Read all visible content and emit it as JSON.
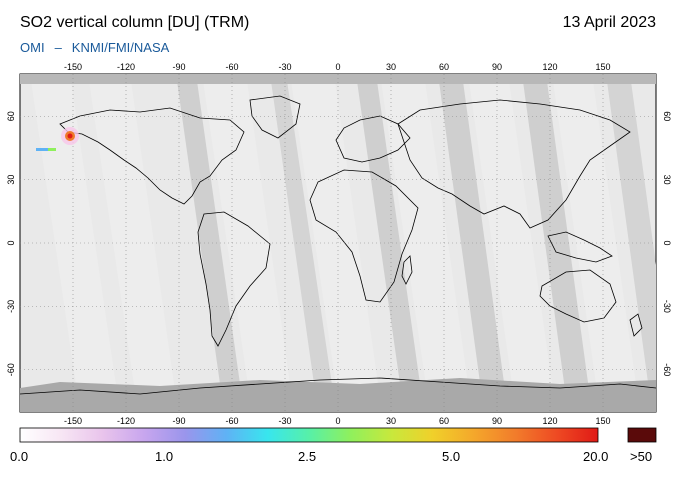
{
  "header": {
    "title": "SO2 vertical column [DU] (TRM)",
    "date": "13 April 2023",
    "source_left": "OMI",
    "source_sep": "–",
    "source_right": "KNMI/FMI/NASA"
  },
  "map": {
    "lon_ticks": [
      "-150",
      "-120",
      "-90",
      "-60",
      "-30",
      "0",
      "30",
      "60",
      "90",
      "120",
      "150"
    ],
    "lat_ticks_left": [
      "60",
      "30",
      "0",
      "-30",
      "-60"
    ],
    "lat_ticks_right": [
      "60",
      "30",
      "0",
      "-30",
      "-60"
    ],
    "colors": {
      "background": "#e9e9e9",
      "swath_light": "#ededed",
      "swath_dark": "#cfcfcf",
      "polar": "#a9a9a9",
      "coast": "#000000"
    },
    "so2_hotspot": {
      "lon": -160,
      "lat": 56,
      "note": "elevated SO2 over Alaska / Aleutians"
    }
  },
  "colorbar": {
    "labels": [
      "0.0",
      "1.0",
      "2.5",
      "5.0",
      "20.0"
    ],
    "max_label": ">50",
    "gradient": [
      "#ffffff",
      "#f7e6f4",
      "#e9c4ec",
      "#c8a6ee",
      "#9a95ec",
      "#5fb2f5",
      "#38e6ee",
      "#57f0a8",
      "#8ff05d",
      "#c8e83c",
      "#f0d02a",
      "#f4a72b",
      "#f27c2b",
      "#ee4a23",
      "#e01a16"
    ],
    "max_color": "#5a0a0a"
  }
}
